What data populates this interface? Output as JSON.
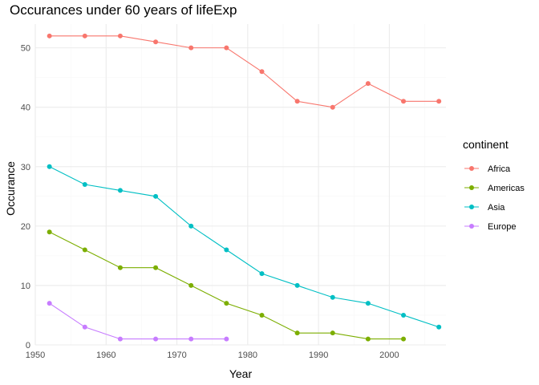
{
  "chart_data": {
    "type": "line",
    "title": "Occurances under 60 years of lifeExp",
    "xlabel": "Year",
    "ylabel": "Occurance",
    "xlim": [
      1950,
      2008
    ],
    "ylim": [
      0,
      54
    ],
    "x_ticks": [
      1950,
      1960,
      1970,
      1980,
      1990,
      2000
    ],
    "y_ticks": [
      0,
      10,
      20,
      30,
      40,
      50
    ],
    "grid": true,
    "legend": {
      "title": "continent",
      "position": "right"
    },
    "series": [
      {
        "name": "Africa",
        "color": "#F8766D",
        "x": [
          1952,
          1957,
          1962,
          1967,
          1972,
          1977,
          1982,
          1987,
          1992,
          1997,
          2002,
          2007
        ],
        "y": [
          52,
          52,
          52,
          51,
          50,
          50,
          46,
          41,
          40,
          44,
          41,
          41
        ]
      },
      {
        "name": "Americas",
        "color": "#7CAE00",
        "x": [
          1952,
          1957,
          1962,
          1967,
          1972,
          1977,
          1982,
          1987,
          1992,
          1997,
          2002
        ],
        "y": [
          19,
          16,
          13,
          13,
          10,
          7,
          5,
          2,
          2,
          1,
          1
        ]
      },
      {
        "name": "Asia",
        "color": "#00BFC4",
        "x": [
          1952,
          1957,
          1962,
          1967,
          1972,
          1977,
          1982,
          1987,
          1992,
          1997,
          2002,
          2007
        ],
        "y": [
          30,
          27,
          26,
          25,
          20,
          16,
          12,
          10,
          8,
          7,
          5,
          3
        ]
      },
      {
        "name": "Europe",
        "color": "#C77CFF",
        "x": [
          1952,
          1957,
          1962,
          1967,
          1972,
          1977
        ],
        "y": [
          7,
          3,
          1,
          1,
          1,
          1
        ]
      }
    ]
  }
}
